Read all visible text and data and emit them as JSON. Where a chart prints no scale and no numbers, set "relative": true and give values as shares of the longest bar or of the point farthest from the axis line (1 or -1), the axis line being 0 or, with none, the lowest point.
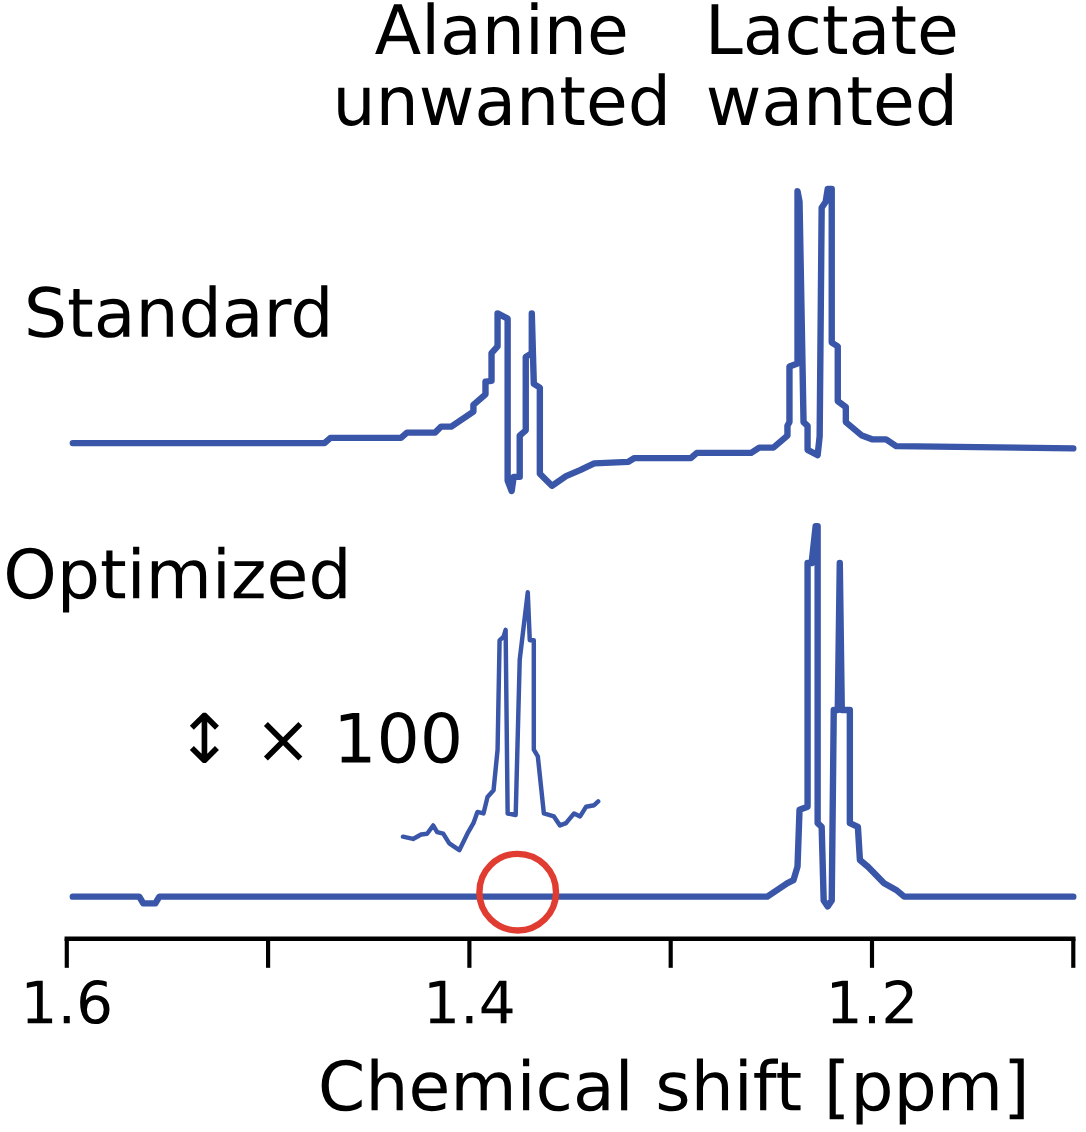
{
  "chart_data": {
    "type": "line",
    "relative": true,
    "xlabel": "Chemical shift [ppm]",
    "xlim": [
      1.6,
      1.1
    ],
    "xticks": [
      1.6,
      {
        "value": 1.5,
        "label": null
      },
      1.4,
      {
        "value": 1.3,
        "label": null
      },
      1.2,
      {
        "value": 1.1,
        "label": null
      }
    ],
    "tick_labels": "x",
    "annotations": [
      "Alanine\nunwanted",
      "Lactate\nwanted",
      "Optimized"
    ],
    "series": [
      {
        "name": "Standard",
        "color": "#3a56a8",
        "x": [
          1.597,
          1.472,
          1.469,
          1.434,
          1.431,
          1.417,
          1.414,
          1.409,
          1.398,
          1.398,
          1.392,
          1.392,
          1.389,
          1.389,
          1.386,
          1.386,
          1.381,
          1.381,
          1.379,
          1.378,
          1.375,
          1.375,
          1.372,
          1.372,
          1.369,
          1.369,
          1.368,
          1.365,
          1.365,
          1.359,
          1.352,
          1.345,
          1.338,
          1.321,
          1.318,
          1.29,
          1.287,
          1.26,
          1.256,
          1.249,
          1.242,
          1.242,
          1.241,
          1.241,
          1.237,
          1.237,
          1.236,
          1.234,
          1.232,
          1.232,
          1.227,
          1.226,
          1.225,
          1.223,
          1.222,
          1.22,
          1.22,
          1.217,
          1.217,
          1.213,
          1.213,
          1.205,
          1.2,
          1.193,
          1.188,
          1.1
        ],
        "values": [
          0.661,
          0.661,
          0.668,
          0.668,
          0.675,
          0.675,
          0.683,
          0.683,
          0.703,
          0.712,
          0.726,
          0.743,
          0.744,
          0.781,
          0.79,
          0.834,
          0.827,
          0.611,
          0.597,
          0.616,
          0.616,
          0.671,
          0.678,
          0.776,
          0.781,
          0.834,
          0.74,
          0.735,
          0.62,
          0.604,
          0.617,
          0.625,
          0.634,
          0.636,
          0.641,
          0.641,
          0.648,
          0.648,
          0.655,
          0.655,
          0.671,
          0.684,
          0.689,
          0.763,
          0.767,
          0.997,
          0.983,
          0.689,
          0.684,
          0.652,
          0.645,
          0.67,
          0.975,
          0.983,
          1.0,
          1.0,
          0.795,
          0.79,
          0.717,
          0.709,
          0.689,
          0.671,
          0.666,
          0.666,
          0.657,
          0.654
        ]
      },
      {
        "color": "#3a56a8",
        "x": [
          1.597,
          1.564,
          1.562,
          1.556,
          1.554,
          1.252,
          1.247,
          1.242,
          1.239,
          1.237,
          1.236,
          1.232,
          1.232,
          1.23,
          1.228,
          1.227,
          1.227,
          1.225,
          1.224,
          1.222,
          1.22,
          1.219,
          1.217,
          1.216,
          1.215,
          1.211,
          1.211,
          1.207,
          1.206,
          1.202,
          1.194,
          1.188,
          1.184,
          1.1
        ],
        "values": [
          0.056,
          0.056,
          0.047,
          0.047,
          0.056,
          0.056,
          0.065,
          0.074,
          0.078,
          0.096,
          0.172,
          0.176,
          0.501,
          0.501,
          0.55,
          0.55,
          0.154,
          0.149,
          0.051,
          0.043,
          0.051,
          0.305,
          0.305,
          0.501,
          0.305,
          0.305,
          0.154,
          0.149,
          0.105,
          0.096,
          0.074,
          0.065,
          0.056,
          0.056
        ]
      },
      {
        "name": "↕ × 100",
        "color": "#3a56a8",
        "x": [
          1.433,
          1.428,
          1.424,
          1.421,
          1.418,
          1.416,
          1.413,
          1.41,
          1.405,
          1.401,
          1.398,
          1.396,
          1.393,
          1.391,
          1.388,
          1.386,
          1.385,
          1.383,
          1.382,
          1.381,
          1.377,
          1.375,
          1.371,
          1.37,
          1.368,
          1.368,
          1.366,
          1.363,
          1.358,
          1.355,
          1.352,
          1.348,
          1.345,
          1.342,
          1.338,
          1.336
        ],
        "values": [
          0.136,
          0.133,
          0.139,
          0.14,
          0.151,
          0.142,
          0.14,
          0.127,
          0.118,
          0.14,
          0.154,
          0.169,
          0.167,
          0.189,
          0.198,
          0.252,
          0.398,
          0.403,
          0.412,
          0.167,
          0.165,
          0.372,
          0.462,
          0.398,
          0.398,
          0.252,
          0.243,
          0.167,
          0.163,
          0.151,
          0.154,
          0.167,
          0.163,
          0.176,
          0.178,
          0.183
        ]
      },
      {
        "type": "scatter",
        "marker": "circle",
        "color": "#e03c31",
        "x": [
          1.376
        ],
        "values": [
          0.062
        ]
      }
    ]
  }
}
